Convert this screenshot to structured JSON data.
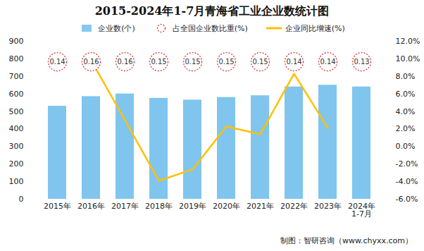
{
  "chart_data": {
    "type": "bar",
    "title": "2015-2024年1-7月青海省工业企业数统计图",
    "source": "制图：智研咨询（www.chyxx.com）",
    "categories": [
      "2015年",
      "2016年",
      "2017年",
      "2018年",
      "2019年",
      "2020年",
      "2021年",
      "2022年",
      "2023年",
      "2024年\n1-7月"
    ],
    "series": [
      {
        "name": "企业数(个)",
        "type": "bar",
        "color": "#5fb6ea",
        "values": [
          530,
          585,
          600,
          575,
          565,
          580,
          590,
          640,
          650,
          640
        ]
      },
      {
        "name": "占全国企业数比重(%)",
        "type": "scatter",
        "marker": "circle",
        "line_style": "dashed",
        "color": "#e03a3a",
        "data_labels": true,
        "values": [
          0.14,
          0.16,
          0.16,
          0.15,
          0.15,
          0.15,
          0.15,
          0.14,
          0.14,
          0.13
        ]
      },
      {
        "name": "企业同比增速(%)",
        "type": "line",
        "axis": "y2",
        "color": "#ffc000",
        "values": [
          null,
          9.8,
          3.0,
          -3.9,
          -2.6,
          2.3,
          1.4,
          8.3,
          2.1,
          null
        ]
      }
    ],
    "ylim": [
      0,
      900
    ],
    "yticks": [
      0,
      100,
      200,
      300,
      400,
      500,
      600,
      700,
      800,
      900
    ],
    "y2lim": [
      -6,
      12
    ],
    "y2ticks": [
      {
        "value": -6,
        "label": "-6.0%"
      },
      {
        "value": -4,
        "label": "-4.0%"
      },
      {
        "value": -2,
        "label": "-2.0%"
      },
      {
        "value": 0,
        "label": "0.0%"
      },
      {
        "value": 2,
        "label": "2.0%"
      },
      {
        "value": 4,
        "label": "4.0%"
      },
      {
        "value": 6,
        "label": "6.0%"
      },
      {
        "value": 8,
        "label": "8.0%"
      },
      {
        "value": 10,
        "label": "10.0%"
      },
      {
        "value": 12,
        "label": "12.0%"
      }
    ],
    "grid": false,
    "legend": "top"
  }
}
